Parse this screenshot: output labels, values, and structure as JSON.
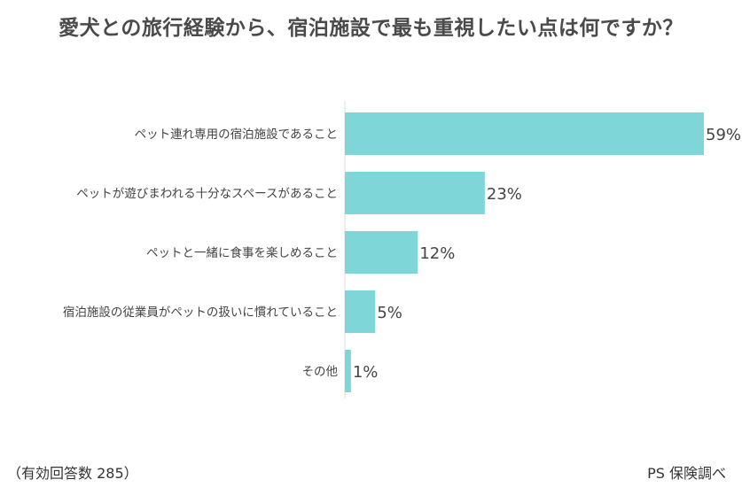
{
  "chart_data": {
    "type": "bar",
    "orientation": "horizontal",
    "title": "愛犬との旅行経験から、宿泊施設で最も重視したい点は何ですか？",
    "categories": [
      "ペット連れ専用の宿泊施設であること",
      "ペットが遊びまわれる十分なスペースがあること",
      "ペットと一緒に食事を楽しめること",
      "宿泊施設の従業員がペットの扱いに慣れていること",
      "その他"
    ],
    "values": [
      59,
      23,
      12,
      5,
      1
    ],
    "value_labels": [
      "59%",
      "23%",
      "12%",
      "5%",
      "1%"
    ],
    "unit": "%",
    "xlim": [
      0,
      59
    ],
    "grid": false,
    "legend": "none",
    "bar_color": "#7fd6d9"
  },
  "footer": {
    "note": "（有効回答数 285）",
    "source": "PS 保険調べ"
  }
}
